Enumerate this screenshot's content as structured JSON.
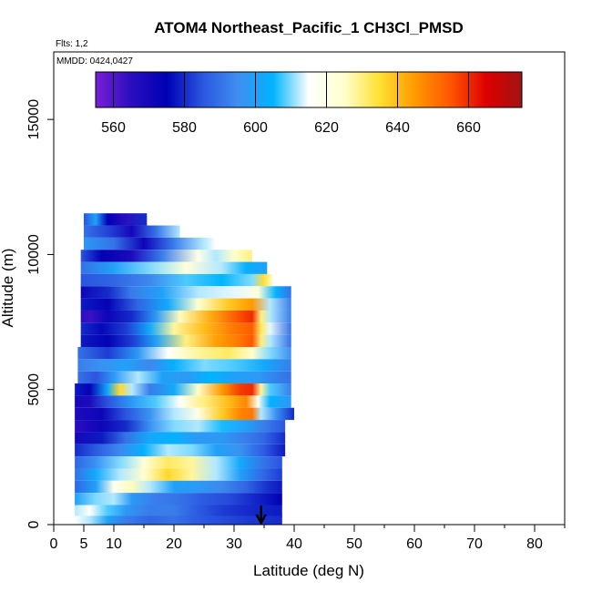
{
  "chart_data": {
    "type": "heatmap",
    "title": "ATOM4 Northeast_Pacific_1 CH3Cl_PMSD",
    "annotations": [
      "Flts: 1,2",
      "MMDD: 0424,0427"
    ],
    "xlabel": "Latitude (deg N)",
    "ylabel": "Altitude (m)",
    "xlim": [
      0,
      85
    ],
    "ylim": [
      0,
      17500
    ],
    "x_ticks": [
      "0",
      "5",
      "10",
      "20",
      "30",
      "40",
      "50",
      "60",
      "70",
      "80"
    ],
    "x_tick_values": [
      0,
      5,
      10,
      20,
      30,
      40,
      50,
      60,
      70,
      80
    ],
    "y_ticks": [
      "0",
      "5000",
      "10000",
      "15000"
    ],
    "y_tick_values": [
      0,
      5000,
      10000,
      15000
    ],
    "colorbar": {
      "range": [
        555,
        675
      ],
      "tick_labels": [
        "560",
        "580",
        "600",
        "620",
        "640",
        "660"
      ],
      "tick_values": [
        560,
        580,
        600,
        620,
        640,
        660
      ],
      "colors": [
        "#7a1fd6",
        "#2a0fc0",
        "#0000b4",
        "#2a55e0",
        "#3f8ef0",
        "#00b4ff",
        "#ffffff",
        "#ffffcc",
        "#ffe033",
        "#ff9900",
        "#ff5500",
        "#dd0000",
        "#a01414"
      ]
    },
    "arrow_marker": {
      "x": 34.5,
      "y_top": 700,
      "y_bottom": 0
    },
    "grid": false,
    "legend": "colorbar top",
    "rows": [
      {
        "alt": 11300,
        "x0": 5.0,
        "x1": 15.5,
        "c": [
          [
            5,
            585
          ],
          [
            7,
            600
          ],
          [
            9,
            575
          ],
          [
            12,
            565
          ],
          [
            15,
            580
          ]
        ]
      },
      {
        "alt": 10850,
        "x0": 5.0,
        "x1": 21.0,
        "c": [
          [
            5,
            590
          ],
          [
            9,
            583
          ],
          [
            13,
            570
          ],
          [
            17,
            590
          ],
          [
            21,
            612
          ]
        ]
      },
      {
        "alt": 10400,
        "x0": 5.0,
        "x1": 27.0,
        "c": [
          [
            5,
            598
          ],
          [
            10,
            590
          ],
          [
            15,
            572
          ],
          [
            20,
            592
          ],
          [
            25,
            612
          ],
          [
            27,
            615
          ]
        ]
      },
      {
        "alt": 9950,
        "x0": 4.5,
        "x1": 33.0,
        "c": [
          [
            4.5,
            585
          ],
          [
            8,
            575
          ],
          [
            13,
            568
          ],
          [
            18,
            592
          ],
          [
            24,
            620
          ],
          [
            27,
            612
          ],
          [
            30,
            625
          ],
          [
            33,
            630
          ]
        ]
      },
      {
        "alt": 9500,
        "x0": 4.5,
        "x1": 35.5,
        "c": [
          [
            4.5,
            590
          ],
          [
            10,
            600
          ],
          [
            16,
            610
          ],
          [
            22,
            622
          ],
          [
            28,
            612
          ],
          [
            32,
            604
          ],
          [
            35.5,
            600
          ]
        ]
      },
      {
        "alt": 9050,
        "x0": 4.5,
        "x1": 36.5,
        "c": [
          [
            4.5,
            585
          ],
          [
            10,
            588
          ],
          [
            16,
            594
          ],
          [
            22,
            608
          ],
          [
            28,
            605
          ],
          [
            33,
            610
          ],
          [
            35,
            635
          ],
          [
            36.5,
            620
          ]
        ]
      },
      {
        "alt": 8600,
        "x0": 4.5,
        "x1": 39.5,
        "c": [
          [
            4.5,
            572
          ],
          [
            9,
            580
          ],
          [
            13,
            592
          ],
          [
            18,
            600
          ],
          [
            24,
            612
          ],
          [
            30,
            614
          ],
          [
            34,
            622
          ],
          [
            37,
            604
          ],
          [
            39.5,
            590
          ]
        ]
      },
      {
        "alt": 8150,
        "x0": 4.5,
        "x1": 39.5,
        "c": [
          [
            4.5,
            578
          ],
          [
            9,
            574
          ],
          [
            14,
            588
          ],
          [
            19,
            602
          ],
          [
            24,
            624
          ],
          [
            29,
            638
          ],
          [
            33,
            645
          ],
          [
            36,
            612
          ],
          [
            39.5,
            592
          ]
        ]
      },
      {
        "alt": 7700,
        "x0": 4.5,
        "x1": 39.5,
        "c": [
          [
            4.5,
            565
          ],
          [
            6,
            563
          ],
          [
            9,
            572
          ],
          [
            13,
            580
          ],
          [
            17,
            598
          ],
          [
            21,
            626
          ],
          [
            26,
            642
          ],
          [
            31,
            656
          ],
          [
            33,
            660
          ],
          [
            34.5,
            630
          ],
          [
            36,
            612
          ],
          [
            39.5,
            592
          ]
        ]
      },
      {
        "alt": 7250,
        "x0": 4.5,
        "x1": 39.5,
        "c": [
          [
            4.5,
            580
          ],
          [
            8,
            576
          ],
          [
            12,
            582
          ],
          [
            16,
            602
          ],
          [
            20,
            628
          ],
          [
            25,
            640
          ],
          [
            30,
            650
          ],
          [
            33,
            654
          ],
          [
            34.5,
            632
          ],
          [
            36,
            614
          ],
          [
            39.5,
            590
          ]
        ]
      },
      {
        "alt": 6800,
        "x0": 4.5,
        "x1": 39.5,
        "c": [
          [
            4.5,
            578
          ],
          [
            9,
            574
          ],
          [
            13,
            582
          ],
          [
            17,
            600
          ],
          [
            22,
            630
          ],
          [
            27,
            644
          ],
          [
            31,
            650
          ],
          [
            33,
            655
          ],
          [
            34.5,
            630
          ],
          [
            36,
            612
          ],
          [
            39.5,
            590
          ]
        ]
      },
      {
        "alt": 6350,
        "x0": 4.0,
        "x1": 39.5,
        "c": [
          [
            4,
            590
          ],
          [
            9,
            582
          ],
          [
            14,
            598
          ],
          [
            19,
            615
          ],
          [
            24,
            628
          ],
          [
            29,
            632
          ],
          [
            33,
            625
          ],
          [
            36,
            610
          ],
          [
            39.5,
            595
          ]
        ]
      },
      {
        "alt": 5900,
        "x0": 4.0,
        "x1": 39.5,
        "c": [
          [
            4,
            592
          ],
          [
            8,
            596
          ],
          [
            12,
            600
          ],
          [
            16,
            594
          ],
          [
            20,
            604
          ],
          [
            25,
            610
          ],
          [
            30,
            608
          ],
          [
            35,
            602
          ],
          [
            39.5,
            592
          ]
        ]
      },
      {
        "alt": 5450,
        "x0": 4.0,
        "x1": 39.5,
        "c": [
          [
            4,
            590
          ],
          [
            7,
            585
          ],
          [
            10,
            598
          ],
          [
            14,
            612
          ],
          [
            18,
            600
          ],
          [
            22,
            598
          ],
          [
            26,
            605
          ],
          [
            30,
            600
          ],
          [
            34,
            598
          ],
          [
            39.5,
            590
          ]
        ]
      },
      {
        "alt": 5000,
        "x0": 3.5,
        "x1": 39.5,
        "c": [
          [
            3.5,
            578
          ],
          [
            6,
            574
          ],
          [
            9,
            602
          ],
          [
            11,
            636
          ],
          [
            13,
            612
          ],
          [
            16,
            592
          ],
          [
            20,
            602
          ],
          [
            24,
            625
          ],
          [
            28,
            645
          ],
          [
            31,
            658
          ],
          [
            33,
            660
          ],
          [
            34.5,
            628
          ],
          [
            36,
            608
          ],
          [
            39.5,
            592
          ]
        ]
      },
      {
        "alt": 4550,
        "x0": 3.5,
        "x1": 39.5,
        "c": [
          [
            3.5,
            570
          ],
          [
            6,
            568
          ],
          [
            9,
            585
          ],
          [
            13,
            598
          ],
          [
            17,
            608
          ],
          [
            21,
            616
          ],
          [
            25,
            630
          ],
          [
            29,
            640
          ],
          [
            32,
            648
          ],
          [
            34,
            618
          ],
          [
            36,
            604
          ],
          [
            39.5,
            598
          ]
        ]
      },
      {
        "alt": 4100,
        "x0": 3.5,
        "x1": 40.0,
        "c": [
          [
            3.5,
            568
          ],
          [
            8,
            572
          ],
          [
            12,
            585
          ],
          [
            16,
            596
          ],
          [
            20,
            612
          ],
          [
            24,
            620
          ],
          [
            28,
            638
          ],
          [
            31,
            648
          ],
          [
            33,
            650
          ],
          [
            34.5,
            612
          ],
          [
            37,
            596
          ],
          [
            40,
            580
          ]
        ]
      },
      {
        "alt": 3650,
        "x0": 3.5,
        "x1": 38.5,
        "c": [
          [
            3.5,
            565
          ],
          [
            8,
            572
          ],
          [
            12,
            580
          ],
          [
            16,
            596
          ],
          [
            20,
            610
          ],
          [
            24,
            612
          ],
          [
            28,
            606
          ],
          [
            32,
            600
          ],
          [
            35,
            592
          ],
          [
            38.5,
            585
          ]
        ]
      },
      {
        "alt": 3200,
        "x0": 3.5,
        "x1": 38.5,
        "c": [
          [
            3.5,
            570
          ],
          [
            8,
            578
          ],
          [
            12,
            590
          ],
          [
            16,
            602
          ],
          [
            20,
            604
          ],
          [
            24,
            598
          ],
          [
            28,
            598
          ],
          [
            32,
            592
          ],
          [
            35,
            588
          ],
          [
            38.5,
            580
          ]
        ]
      },
      {
        "alt": 2750,
        "x0": 3.5,
        "x1": 38.5,
        "c": [
          [
            3.5,
            580
          ],
          [
            7,
            586
          ],
          [
            11,
            594
          ],
          [
            15,
            604
          ],
          [
            19,
            612
          ],
          [
            23,
            610
          ],
          [
            27,
            600
          ],
          [
            31,
            596
          ],
          [
            35,
            586
          ],
          [
            38.5,
            578
          ]
        ]
      },
      {
        "alt": 2300,
        "x0": 3.5,
        "x1": 38.0,
        "c": [
          [
            3.5,
            588
          ],
          [
            7,
            596
          ],
          [
            11,
            610
          ],
          [
            15,
            622
          ],
          [
            19,
            632
          ],
          [
            23,
            628
          ],
          [
            27,
            612
          ],
          [
            31,
            602
          ],
          [
            35,
            590
          ],
          [
            38,
            585
          ]
        ]
      },
      {
        "alt": 1850,
        "x0": 3.5,
        "x1": 38.0,
        "c": [
          [
            3.5,
            590
          ],
          [
            7,
            602
          ],
          [
            11,
            612
          ],
          [
            15,
            624
          ],
          [
            19,
            636
          ],
          [
            23,
            628
          ],
          [
            27,
            612
          ],
          [
            31,
            600
          ],
          [
            35,
            588
          ],
          [
            38,
            582
          ]
        ]
      },
      {
        "alt": 1400,
        "x0": 3.5,
        "x1": 38.0,
        "c": [
          [
            3.5,
            588
          ],
          [
            7,
            600
          ],
          [
            10,
            618
          ],
          [
            13,
            626
          ],
          [
            16,
            612
          ],
          [
            20,
            600
          ],
          [
            24,
            598
          ],
          [
            28,
            594
          ],
          [
            32,
            588
          ],
          [
            36,
            580
          ],
          [
            38,
            578
          ]
        ]
      },
      {
        "alt": 950,
        "x0": 3.5,
        "x1": 38.0,
        "c": [
          [
            3.5,
            600
          ],
          [
            7,
            610
          ],
          [
            10,
            612
          ],
          [
            13,
            598
          ],
          [
            17,
            592
          ],
          [
            21,
            590
          ],
          [
            25,
            586
          ],
          [
            29,
            584
          ],
          [
            33,
            580
          ],
          [
            38,
            575
          ]
        ]
      },
      {
        "alt": 500,
        "x0": 3.5,
        "x1": 38.0,
        "c": [
          [
            3.5,
            612
          ],
          [
            6,
            616
          ],
          [
            9,
            608
          ],
          [
            12,
            598
          ],
          [
            16,
            592
          ],
          [
            20,
            592
          ],
          [
            24,
            586
          ],
          [
            28,
            582
          ],
          [
            32,
            580
          ],
          [
            38,
            578
          ]
        ]
      },
      {
        "alt": 100,
        "x0": 3.5,
        "x1": 38.0,
        "c": [
          [
            3.5,
            616
          ],
          [
            6,
            612
          ],
          [
            9,
            600
          ],
          [
            12,
            592
          ],
          [
            16,
            588
          ],
          [
            20,
            590
          ],
          [
            24,
            586
          ],
          [
            28,
            584
          ],
          [
            32,
            582
          ],
          [
            38,
            580
          ]
        ]
      }
    ]
  }
}
